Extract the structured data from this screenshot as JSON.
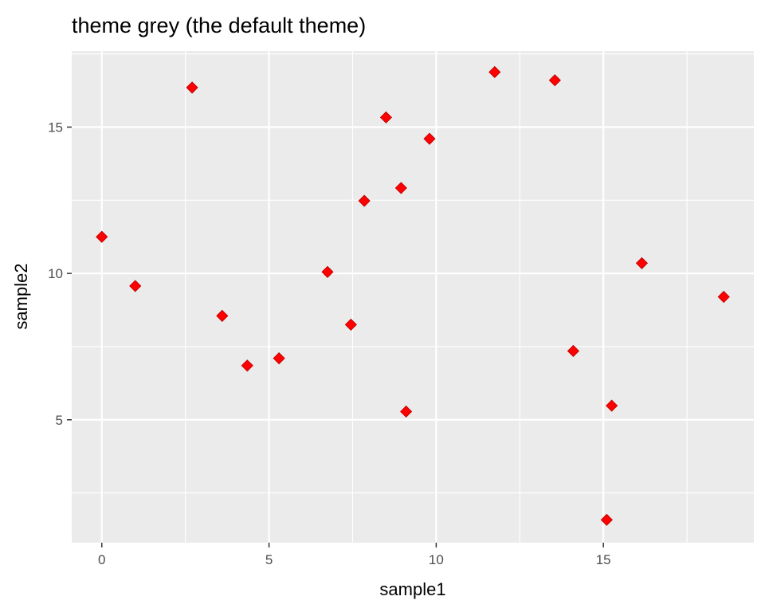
{
  "chart_data": {
    "type": "scatter",
    "title": "theme grey (the default theme)",
    "xlabel": "sample1",
    "ylabel": "sample2",
    "xlim": [
      -0.9,
      19.5
    ],
    "ylim": [
      0.8,
      17.6
    ],
    "x_ticks": [
      0,
      5,
      10,
      15
    ],
    "y_ticks": [
      5,
      10,
      15
    ],
    "x_minor_ticks": [
      2.5,
      7.5,
      12.5,
      17.5
    ],
    "y_minor_ticks": [
      2.5,
      7.5,
      12.5,
      17.5
    ],
    "grid": true,
    "legend": "none",
    "series": [
      {
        "marker": "diamond",
        "color": "#ff0000",
        "edge_color": "#b30000",
        "points": [
          {
            "x": 0.0,
            "y": 11.25
          },
          {
            "x": 1.0,
            "y": 9.57
          },
          {
            "x": 2.7,
            "y": 16.35
          },
          {
            "x": 3.6,
            "y": 8.55
          },
          {
            "x": 4.35,
            "y": 6.85
          },
          {
            "x": 5.3,
            "y": 7.1
          },
          {
            "x": 6.75,
            "y": 10.05
          },
          {
            "x": 7.45,
            "y": 8.25
          },
          {
            "x": 7.85,
            "y": 12.48
          },
          {
            "x": 8.5,
            "y": 15.33
          },
          {
            "x": 8.95,
            "y": 12.92
          },
          {
            "x": 9.1,
            "y": 5.28
          },
          {
            "x": 9.8,
            "y": 14.6
          },
          {
            "x": 11.75,
            "y": 16.88
          },
          {
            "x": 13.55,
            "y": 16.6
          },
          {
            "x": 14.1,
            "y": 7.35
          },
          {
            "x": 15.1,
            "y": 1.58
          },
          {
            "x": 15.25,
            "y": 5.48
          },
          {
            "x": 16.15,
            "y": 10.35
          },
          {
            "x": 18.6,
            "y": 9.2
          }
        ]
      }
    ]
  },
  "style": {
    "panel_background": "#ebebeb",
    "grid_color": "#ffffff",
    "tick_color": "#333333"
  }
}
